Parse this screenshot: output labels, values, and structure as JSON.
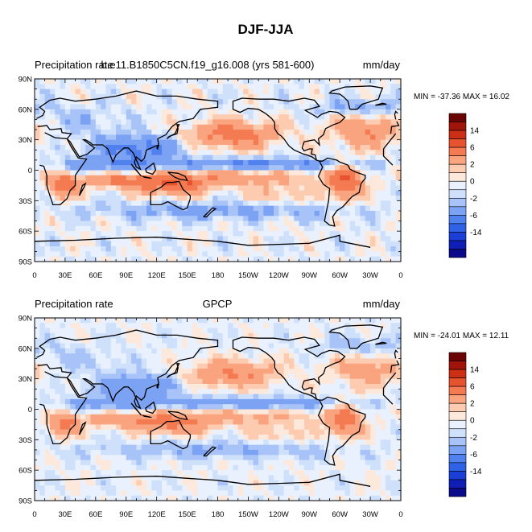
{
  "figure_title": "DJF-JJA",
  "palette": [
    "#0a0a8a",
    "#0f1fb5",
    "#1b3fd6",
    "#2f62e6",
    "#5181ee",
    "#7ca2f4",
    "#a8c3f8",
    "#cfe0fb",
    "#e8f1fd",
    "#fde8dc",
    "#fccbb0",
    "#f9a47f",
    "#f47a52",
    "#e8532f",
    "#cc2e16",
    "#a0140b",
    "#6b0505"
  ],
  "chart_data": [
    {
      "type": "heatmap",
      "left_label": "Precipitation rate",
      "title": "b.e11.B1850C5CN.f19_g16.008 (yrs 581-600)",
      "units": "mm/day",
      "stats": "MIN = -37.36 MAX =  16.02",
      "x_ticks": [
        "0",
        "30E",
        "60E",
        "90E",
        "120E",
        "150E",
        "180",
        "150W",
        "120W",
        "90W",
        "60W",
        "30W",
        "0"
      ],
      "y_ticks": [
        "90N",
        "60N",
        "30N",
        "0",
        "30S",
        "60S",
        "90S"
      ],
      "xlim": [
        0,
        360
      ],
      "ylim": [
        -90,
        90
      ],
      "colorbar_labels": [
        "14",
        "6",
        "2",
        "0",
        "-2",
        "-6",
        "-14"
      ],
      "field_intensity": 1.0
    },
    {
      "type": "heatmap",
      "left_label": "Precipitation rate",
      "title": "GPCP",
      "units": "mm/day",
      "stats": "MIN = -24.01 MAX =  12.11",
      "x_ticks": [
        "0",
        "30E",
        "60E",
        "90E",
        "120E",
        "150E",
        "180",
        "150W",
        "120W",
        "90W",
        "60W",
        "30W",
        "0"
      ],
      "y_ticks": [
        "90N",
        "60N",
        "30N",
        "0",
        "30S",
        "60S",
        "90S"
      ],
      "xlim": [
        0,
        360
      ],
      "ylim": [
        -90,
        90
      ],
      "colorbar_labels": [
        "14",
        "6",
        "2",
        "0",
        "-2",
        "-6",
        "-14"
      ],
      "field_intensity": 0.8
    }
  ]
}
